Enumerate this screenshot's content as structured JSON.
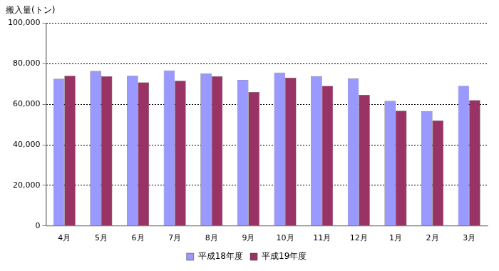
{
  "chart_data": {
    "type": "bar",
    "ylabel": "搬入量(トン)",
    "categories": [
      "4月",
      "5月",
      "6月",
      "7月",
      "8月",
      "9月",
      "10月",
      "11月",
      "12月",
      "1月",
      "2月",
      "3月"
    ],
    "series": [
      {
        "name": "平成18年度",
        "color": "#9999ff",
        "values": [
          72500,
          76400,
          74000,
          76700,
          75300,
          72000,
          75600,
          73800,
          72700,
          61600,
          56500,
          69000
        ]
      },
      {
        "name": "平成19年度",
        "color": "#993366",
        "values": [
          74000,
          73800,
          70800,
          71600,
          73800,
          66000,
          73100,
          69000,
          64600,
          56800,
          52000,
          62000
        ]
      }
    ],
    "ylim": [
      0,
      100000
    ],
    "yticks": [
      0,
      {
        "value": 20000,
        "label": "20,000"
      },
      {
        "value": 40000,
        "label": "40,000"
      },
      {
        "value": 60000,
        "label": "60,000"
      },
      {
        "value": 80000,
        "label": "80,000"
      },
      {
        "value": 100000,
        "label": "100,000"
      }
    ],
    "grid": true,
    "legend": "bottom"
  }
}
